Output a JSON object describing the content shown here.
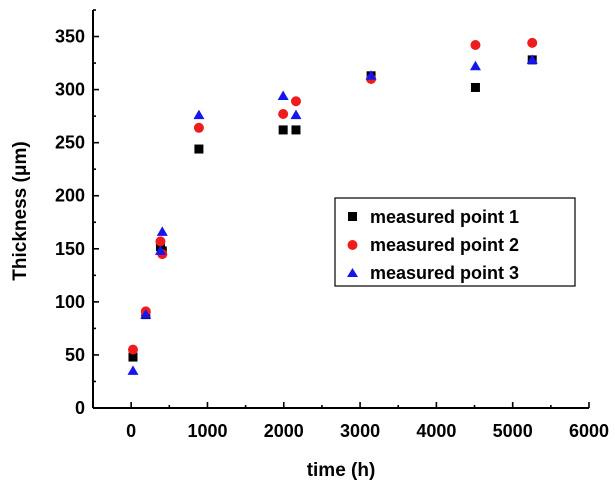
{
  "chart_data": {
    "type": "scatter",
    "title": "",
    "xlabel": "time (h)",
    "ylabel": "Thickness (μm)",
    "xlim": [
      -500,
      6000
    ],
    "ylim": [
      0,
      375
    ],
    "xticks": [
      0,
      1000,
      2000,
      3000,
      4000,
      5000,
      6000
    ],
    "yticks": [
      0,
      50,
      100,
      150,
      200,
      250,
      300,
      350
    ],
    "grid": false,
    "legend_position": "center-right",
    "series": [
      {
        "name": "measured point 1",
        "marker": "square",
        "color": "#000000",
        "x": [
          24,
          192,
          384,
          408,
          888,
          1992,
          2160,
          3144,
          4512,
          5256
        ],
        "y": [
          48,
          88,
          152,
          148,
          244,
          262,
          262,
          313,
          302,
          328
        ]
      },
      {
        "name": "measured point 2",
        "marker": "circle",
        "color": "#ee1c1c",
        "x": [
          24,
          192,
          384,
          408,
          888,
          1992,
          2160,
          3144,
          4512,
          5256
        ],
        "y": [
          55,
          91,
          157,
          145,
          264,
          277,
          289,
          310,
          342,
          344
        ]
      },
      {
        "name": "measured point 3",
        "marker": "triangle",
        "color": "#1515ee",
        "x": [
          24,
          192,
          384,
          408,
          888,
          1992,
          2160,
          3144,
          4512,
          5256
        ],
        "y": [
          35,
          88,
          148,
          166,
          276,
          294,
          276,
          313,
          322,
          328
        ]
      }
    ]
  }
}
